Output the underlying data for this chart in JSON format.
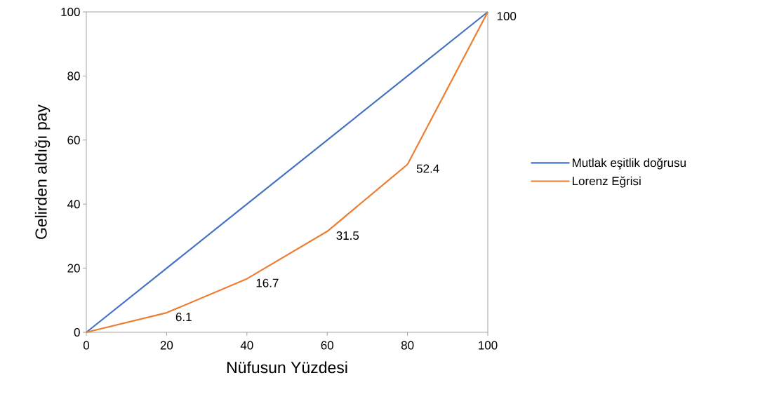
{
  "chart_data": {
    "type": "line",
    "xlabel": "Nüfusun Yüzdesi",
    "ylabel": "Gelirden aldığı pay",
    "x": [
      0,
      20,
      40,
      60,
      80,
      100
    ],
    "series": [
      {
        "name": "Mutlak eşitlik doğrusu",
        "color": "#4472c4",
        "values": [
          0,
          20,
          40,
          60,
          80,
          100
        ]
      },
      {
        "name": "Lorenz Eğrisi",
        "color": "#ed7d31",
        "values": [
          0,
          6.1,
          16.7,
          31.5,
          52.4,
          100
        ],
        "value_labels": [
          null,
          "6.1",
          "16.7",
          "31.5",
          "52.4",
          "100"
        ]
      }
    ],
    "xlim": [
      0,
      100
    ],
    "ylim": [
      0,
      100
    ],
    "xticks": [
      0,
      20,
      40,
      60,
      80,
      100
    ],
    "yticks": [
      0,
      20,
      40,
      60,
      80,
      100
    ],
    "grid": false,
    "legend": "right",
    "marker": "none",
    "line_style": "solid"
  }
}
